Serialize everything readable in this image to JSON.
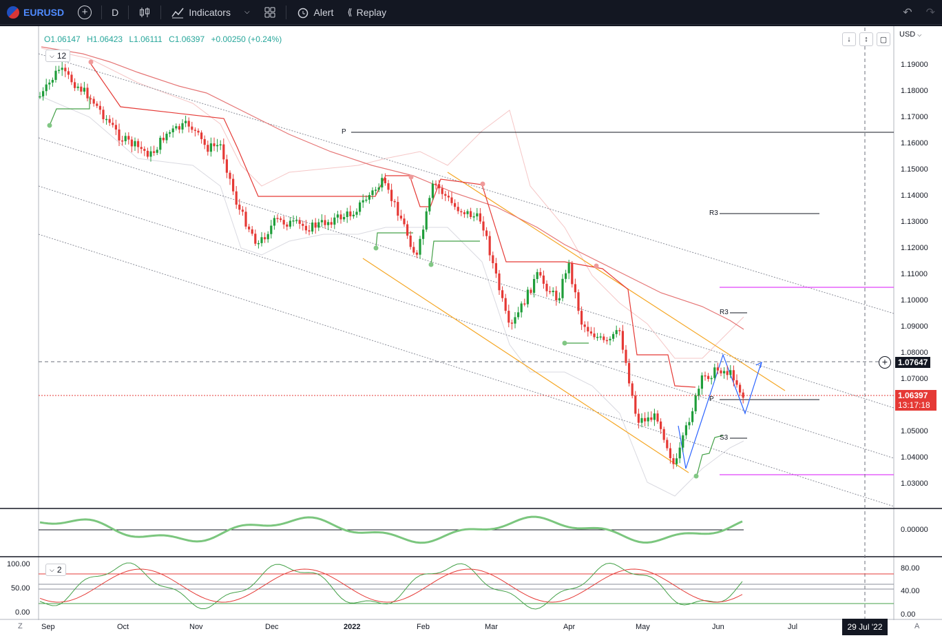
{
  "toolbar": {
    "symbol": "EURUSD",
    "interval": "D",
    "indicators_label": "Indicators",
    "alert_label": "Alert",
    "replay_label": "Replay"
  },
  "legend": {
    "open": "O1.06147",
    "high": "H1.06423",
    "low": "L1.06111",
    "close": "C1.06397",
    "change": "+0.00250 (+0.24%)",
    "collapse_count": "12",
    "osc_collapse_count": "2"
  },
  "currency": "USD",
  "price_axis": [
    "1.19000",
    "1.18000",
    "1.17000",
    "1.16000",
    "1.15000",
    "1.14000",
    "1.13000",
    "1.12000",
    "1.11000",
    "1.10000",
    "1.09000",
    "1.08000",
    "1.07000",
    "1.05000",
    "1.04000",
    "1.03000"
  ],
  "osc_axis": [
    "0.00000"
  ],
  "stoch_axis_right": [
    "80.00",
    "40.00",
    "0.00"
  ],
  "stoch_axis_left": [
    "100.00",
    "50.00",
    "0.00"
  ],
  "time_axis": [
    "Sep",
    "Oct",
    "Nov",
    "Dec",
    "2022",
    "Feb",
    "Mar",
    "Apr",
    "May",
    "Jun",
    "Jul"
  ],
  "crosshair_price": "1.07647",
  "last_price": "1.06397",
  "countdown": "13:17:18",
  "crosshair_date": "29 Jul '22",
  "pivot_labels": {
    "p_top": "P",
    "r3_top": "R3",
    "r3_mid": "R3",
    "p_bottom": "P",
    "s3": "S3"
  },
  "corner_left": "Z",
  "corner_right": "A",
  "colors": {
    "up": "#1f9d3a",
    "down": "#e53935",
    "bg": "#ffffff",
    "dark": "#131722"
  }
}
